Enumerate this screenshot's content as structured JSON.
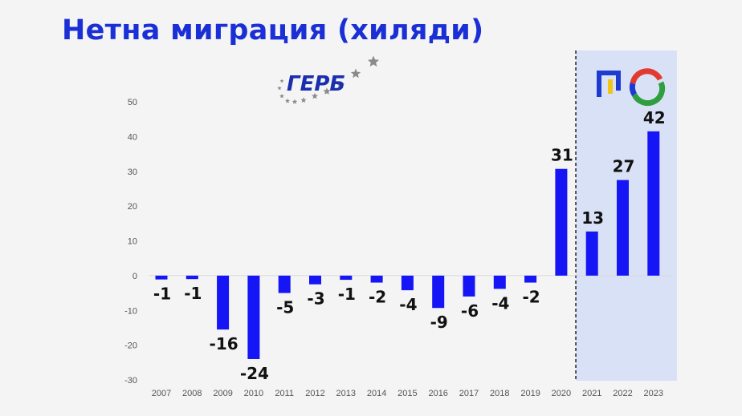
{
  "title": "Нетна миграция (хиляди)",
  "logos": {
    "left_text": "ГЕРБ",
    "left_color": "#1a2fb0",
    "star_color": "#8a8a8a",
    "right_colors": [
      "#1d3bd1",
      "#f0c419",
      "#2e9e3e",
      "#e23a2e"
    ]
  },
  "chart_data": {
    "type": "bar",
    "categories": [
      "2007",
      "2008",
      "2009",
      "2010",
      "2011",
      "2012",
      "2013",
      "2014",
      "2015",
      "2016",
      "2017",
      "2018",
      "2019",
      "2020",
      "2021",
      "2022",
      "2023"
    ],
    "values": [
      -1,
      -1,
      -16,
      -24,
      -5,
      -3,
      -1,
      -2,
      -4,
      -9,
      -6,
      -4,
      -2,
      31,
      13,
      27,
      42
    ],
    "bar_values": [
      -1.1,
      -1.0,
      -15.5,
      -24.0,
      -5.0,
      -2.5,
      -1.2,
      -2.0,
      -4.2,
      -9.3,
      -6.0,
      -3.8,
      -2.0,
      30.7,
      12.7,
      27.5,
      41.5
    ],
    "data_labels": [
      "-1",
      "-1",
      "-16",
      "-24",
      "-5",
      "-3",
      "-1",
      "-2",
      "-4",
      "-9",
      "-6",
      "-4",
      "-2",
      "31",
      "13",
      "27",
      "42"
    ],
    "yticks": [
      50,
      40,
      30,
      20,
      10,
      0,
      -10,
      -20,
      -30
    ],
    "ylim": [
      -30,
      50
    ],
    "bar_color": "#1515f5",
    "highlight_color": "#d9e1f7",
    "highlight_categories": [
      "2021",
      "2022",
      "2023"
    ],
    "grid": false,
    "xlabel": "",
    "ylabel": ""
  }
}
